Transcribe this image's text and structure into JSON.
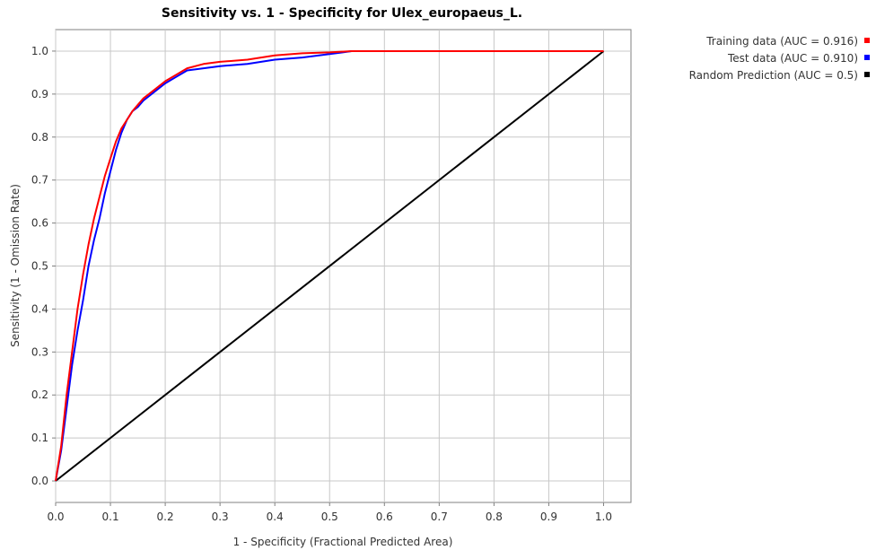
{
  "chart_data": {
    "type": "line",
    "title": "Sensitivity vs. 1 - Specificity for Ulex_europaeus_L.",
    "xlabel": "1 - Specificity  (Fractional Predicted Area)",
    "ylabel": "Sensitivity  (1 - Omission Rate)",
    "xlim": [
      0,
      1.05
    ],
    "ylim": [
      -0.05,
      1.05
    ],
    "xticks": [
      "0.0",
      "0.1",
      "0.2",
      "0.3",
      "0.4",
      "0.5",
      "0.6",
      "0.7",
      "0.8",
      "0.9",
      "1.0"
    ],
    "yticks": [
      "0.0",
      "0.1",
      "0.2",
      "0.3",
      "0.4",
      "0.5",
      "0.6",
      "0.7",
      "0.8",
      "0.9",
      "1.0"
    ],
    "grid": true,
    "legend_position": "top-right, outside plot",
    "series": [
      {
        "name": "Training data (AUC = 0.916)",
        "color": "#ff0000",
        "x": [
          0.0,
          0.01,
          0.02,
          0.03,
          0.04,
          0.05,
          0.06,
          0.07,
          0.08,
          0.09,
          0.1,
          0.11,
          0.12,
          0.13,
          0.14,
          0.15,
          0.16,
          0.18,
          0.2,
          0.22,
          0.24,
          0.27,
          0.3,
          0.35,
          0.4,
          0.45,
          0.5,
          0.54,
          0.6,
          0.7,
          0.8,
          0.9,
          1.0
        ],
        "y": [
          0.0,
          0.08,
          0.2,
          0.3,
          0.4,
          0.48,
          0.55,
          0.61,
          0.66,
          0.71,
          0.75,
          0.79,
          0.82,
          0.84,
          0.86,
          0.875,
          0.89,
          0.91,
          0.93,
          0.945,
          0.96,
          0.97,
          0.975,
          0.98,
          0.99,
          0.995,
          0.997,
          1.0,
          1.0,
          1.0,
          1.0,
          1.0,
          1.0
        ]
      },
      {
        "name": "Test data (AUC = 0.910)",
        "color": "#0000ff",
        "x": [
          0.0,
          0.01,
          0.02,
          0.03,
          0.04,
          0.05,
          0.06,
          0.07,
          0.08,
          0.09,
          0.1,
          0.11,
          0.12,
          0.13,
          0.14,
          0.15,
          0.16,
          0.18,
          0.2,
          0.22,
          0.24,
          0.27,
          0.3,
          0.35,
          0.4,
          0.45,
          0.5,
          0.54,
          0.6,
          0.7,
          0.8,
          0.9,
          1.0
        ],
        "y": [
          0.0,
          0.07,
          0.17,
          0.27,
          0.35,
          0.42,
          0.5,
          0.56,
          0.61,
          0.67,
          0.72,
          0.77,
          0.81,
          0.84,
          0.86,
          0.87,
          0.885,
          0.905,
          0.925,
          0.94,
          0.955,
          0.96,
          0.965,
          0.97,
          0.98,
          0.985,
          0.993,
          1.0,
          1.0,
          1.0,
          1.0,
          1.0,
          1.0
        ]
      },
      {
        "name": "Random Prediction (AUC = 0.5)",
        "color": "#000000",
        "x": [
          0.0,
          1.0
        ],
        "y": [
          0.0,
          1.0
        ]
      }
    ]
  }
}
